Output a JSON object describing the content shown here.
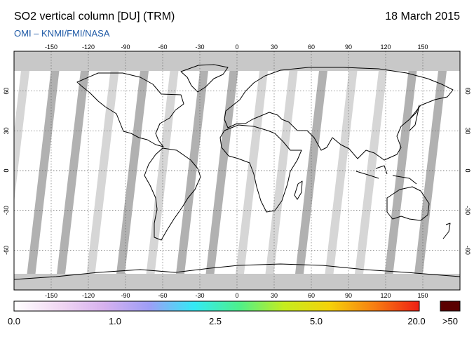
{
  "header": {
    "title": "SO2 vertical column [DU] (TRM)",
    "subtitle": "OMI  –  KNMI/FMI/NASA",
    "date": "18 March 2015"
  },
  "map": {
    "projection": "equirectangular",
    "lon_ticks": [
      "-150",
      "-120",
      "-90",
      "-60",
      "-30",
      "0",
      "30",
      "60",
      "90",
      "120",
      "150"
    ],
    "lat_ticks": [
      "60",
      "30",
      "0",
      "-30",
      "-60"
    ],
    "land_outline_color": "#000000",
    "swath_color_light": "#d2d2d2",
    "swath_color_dark": "#a8a8a8",
    "no_data_color": "#c8c8c8"
  },
  "colorbar": {
    "labels": [
      "0.0",
      "1.0",
      "2.5",
      "5.0",
      "20.0"
    ],
    "overflow_label": ">50",
    "overflow_color": "#5a0000",
    "gradient_colors": [
      "#ffffff",
      "#f1d8f3",
      "#d7b1ee",
      "#9e9ef7",
      "#33e9f5",
      "#4df08c",
      "#c5ed1e",
      "#f5d20a",
      "#f77e12",
      "#ee1f14"
    ]
  }
}
